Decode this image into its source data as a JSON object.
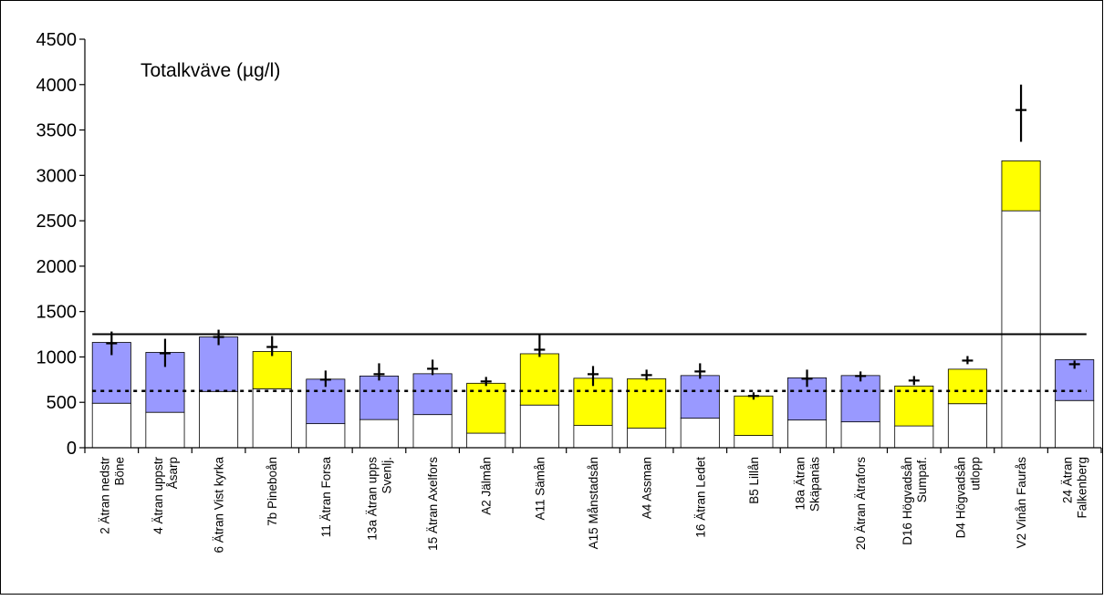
{
  "chart_data": {
    "type": "bar",
    "stacked": true,
    "title": "Totalkväve (µg/l)",
    "xlabel": "",
    "ylabel": "",
    "ylim": [
      0,
      4500
    ],
    "yticks": [
      0,
      500,
      1000,
      1500,
      2000,
      2500,
      3000,
      3500,
      4000,
      4500
    ],
    "grid": false,
    "categories": [
      [
        "2 Ätran nedstr",
        "Böne"
      ],
      [
        "4 Ätran uppstr",
        "Åsarp"
      ],
      [
        "6 Ätran Vist kyrka"
      ],
      [
        "7b Pineboån"
      ],
      [
        "11 Ätran Forsa"
      ],
      [
        "13a Ätran upps",
        "Svenlj."
      ],
      [
        "15 Ätran Axelfors"
      ],
      [
        "A2 Jälmån"
      ],
      [
        "A11 Sämån"
      ],
      [
        "A15 Månstadsån"
      ],
      [
        "A4 Assman"
      ],
      [
        "16 Ätran Ledet"
      ],
      [
        "B5 Lillån"
      ],
      [
        "18a Ätran",
        "Skäpanäs"
      ],
      [
        "20 Ätran Ätrafors"
      ],
      [
        "D16 Högvadsån",
        "Sumpaf."
      ],
      [
        "D4 Högvadsån",
        "utlopp"
      ],
      [
        "V2 Vinån Faurås"
      ],
      [
        "24 Ätran",
        "Falkenberg"
      ]
    ],
    "base_values": [
      490,
      390,
      620,
      650,
      265,
      310,
      365,
      160,
      470,
      245,
      215,
      325,
      135,
      305,
      285,
      240,
      485,
      2610,
      520
    ],
    "totals": [
      1160,
      1050,
      1220,
      1060,
      755,
      790,
      815,
      710,
      1035,
      765,
      760,
      795,
      570,
      770,
      795,
      680,
      865,
      3160,
      970
    ],
    "upper_colors": [
      "#9999ff",
      "#9999ff",
      "#9999ff",
      "#ffff00",
      "#9999ff",
      "#9999ff",
      "#9999ff",
      "#ffff00",
      "#ffff00",
      "#ffff00",
      "#ffff00",
      "#9999ff",
      "#ffff00",
      "#9999ff",
      "#9999ff",
      "#ffff00",
      "#ffff00",
      "#ffff00",
      "#9999ff"
    ],
    "base_color": "#ffffff",
    "markers": [
      {
        "value": 1150,
        "low": 1020,
        "high": 1280
      },
      {
        "value": 1040,
        "low": 890,
        "high": 1200
      },
      {
        "value": 1220,
        "low": 1130,
        "high": 1300
      },
      {
        "value": 1110,
        "low": 1010,
        "high": 1230
      },
      {
        "value": 750,
        "low": 670,
        "high": 850
      },
      {
        "value": 810,
        "low": 740,
        "high": 930
      },
      {
        "value": 870,
        "low": 800,
        "high": 970
      },
      {
        "value": 730,
        "low": 680,
        "high": 780
      },
      {
        "value": 1080,
        "low": 1000,
        "high": 1250
      },
      {
        "value": 810,
        "low": 680,
        "high": 900
      },
      {
        "value": 800,
        "low": 740,
        "high": 860
      },
      {
        "value": 840,
        "low": 760,
        "high": 930
      },
      {
        "value": 570,
        "low": 530,
        "high": 610
      },
      {
        "value": 760,
        "low": 670,
        "high": 860
      },
      {
        "value": 790,
        "low": 730,
        "high": 840
      },
      {
        "value": 740,
        "low": 690,
        "high": 790
      },
      {
        "value": 960,
        "low": 920,
        "high": 1010
      },
      {
        "value": 3720,
        "low": 3370,
        "high": 4000
      },
      {
        "value": 920,
        "low": 870,
        "high": 960
      }
    ],
    "solid_reference_line": 1250,
    "dotted_reference_line": 625
  }
}
